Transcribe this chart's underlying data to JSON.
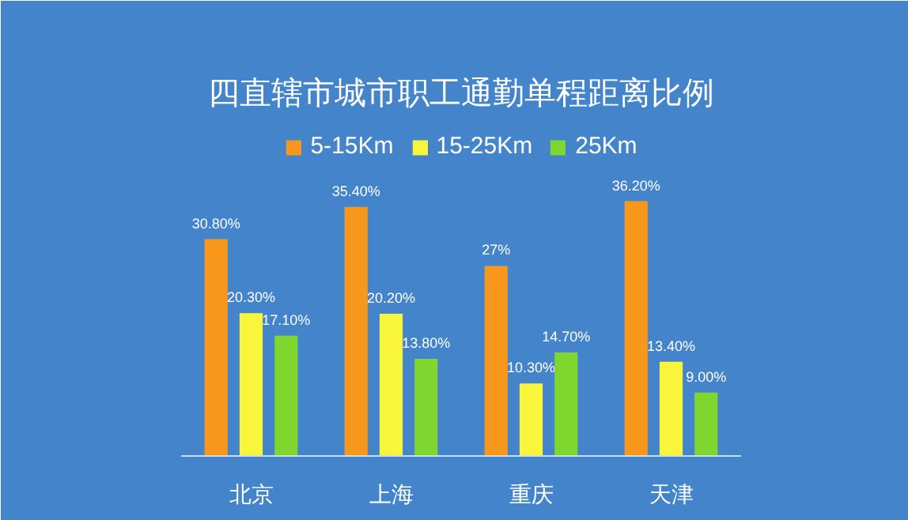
{
  "chart_data": {
    "type": "bar",
    "title": "四直辖市城市职工通勤单程距离比例",
    "categories": [
      "北京",
      "上海",
      "重庆",
      "天津"
    ],
    "series": [
      {
        "name": "5-15Km",
        "color": "#f7981d",
        "values": [
          30.8,
          35.4,
          27,
          36.2
        ],
        "value_labels": [
          "30.80%",
          "35.40%",
          "27%",
          "36.20%"
        ]
      },
      {
        "name": "15-25Km",
        "color": "#f8f53a",
        "values": [
          20.3,
          20.2,
          10.3,
          13.4
        ],
        "value_labels": [
          "20.30%",
          "20.20%",
          "10.30%",
          "13.40%"
        ]
      },
      {
        "name": "25Km",
        "color": "#7fd62e",
        "values": [
          17.1,
          13.8,
          14.7,
          9.0
        ],
        "value_labels": [
          "17.10%",
          "13.80%",
          "14.70%",
          "9.00%"
        ]
      }
    ],
    "legend": "top"
  }
}
